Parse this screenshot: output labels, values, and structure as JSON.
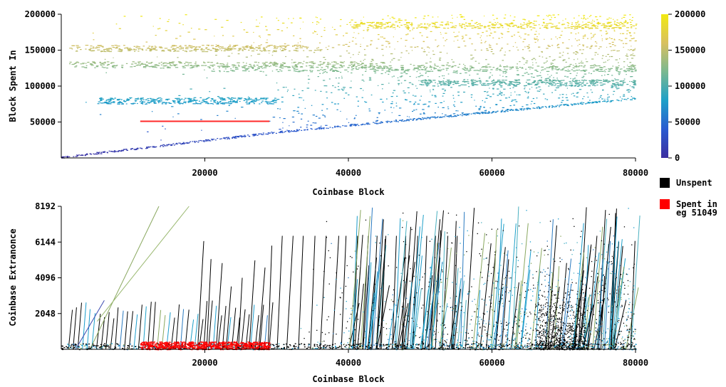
{
  "chart_data": [
    {
      "type": "scatter",
      "xlabel": "Coinbase Block",
      "ylabel": "Block Spent In",
      "xlim": [
        0,
        80000
      ],
      "ylim": [
        0,
        200000
      ],
      "x_ticks": [
        20000,
        40000,
        60000,
        80000
      ],
      "y_ticks": [
        50000,
        100000,
        150000,
        200000
      ],
      "grid": false,
      "color_by": "Block Spent In",
      "colorbar": {
        "ticks": [
          0,
          50000,
          100000,
          150000,
          200000
        ],
        "range": [
          0,
          200000
        ],
        "colors": [
          "#3b2ea0",
          "#2a5bd0",
          "#1ea0c8",
          "#7ab890",
          "#d8c060",
          "#f2ea10"
        ]
      },
      "highlight_series": {
        "legend_label": "Spent in eg 51049",
        "color": "#ff2a2a",
        "segment": {
          "x": [
            11000,
            29000
          ],
          "y": 51049
        }
      },
      "features": {
        "diagonal_min_edge": [
          [
            0,
            0
          ],
          [
            30000,
            35000
          ],
          [
            80000,
            82000
          ]
        ],
        "dense_bands": [
          {
            "x": [
              1000,
              36000
            ],
            "y": 153000
          },
          {
            "x": [
              1000,
              45000
            ],
            "y": 130000
          },
          {
            "x": [
              5000,
              30000
            ],
            "y": 80000
          },
          {
            "x": [
              20000,
              80000
            ],
            "y": 125000
          },
          {
            "x": [
              50000,
              80000
            ],
            "y": 105000
          },
          {
            "x": [
              40000,
              80000
            ],
            "y": 185000
          }
        ]
      }
    },
    {
      "type": "scatter",
      "xlabel": "Coinbase Block",
      "ylabel": "Coinbase Extranonce",
      "xlim": [
        0,
        80000
      ],
      "ylim": [
        0,
        8192
      ],
      "x_ticks": [
        20000,
        40000,
        60000,
        80000
      ],
      "y_ticks": [
        2048,
        4096,
        6144,
        8192
      ],
      "grid": false,
      "series": [
        {
          "name": "Unspent",
          "color": "#000000"
        },
        {
          "name": "Spent in eg 51049",
          "color": "#ff0000",
          "x_range": [
            11000,
            29000
          ],
          "y_range": [
            0,
            450
          ]
        }
      ],
      "features": {
        "sawtooth_ramps": [
          {
            "x": [
              0,
              29000
            ],
            "peak_y": 2800
          },
          {
            "x": [
              19000,
              29000
            ],
            "peak_y": 6500
          },
          {
            "x": [
              30000,
              55000
            ],
            "peak_y": 6500
          },
          {
            "x": [
              40000,
              80000
            ],
            "peak_y": 8192
          }
        ],
        "dense_black_cluster": {
          "x": [
            66000,
            73000
          ],
          "y": [
            0,
            4000
          ]
        }
      }
    }
  ],
  "legend": {
    "placement": "right",
    "entries": [
      {
        "label_lines": [
          "Unspent"
        ],
        "color": "#000000"
      },
      {
        "label_lines": [
          "Spent in",
          "eg 51049"
        ],
        "color": "#ff0000"
      }
    ]
  }
}
